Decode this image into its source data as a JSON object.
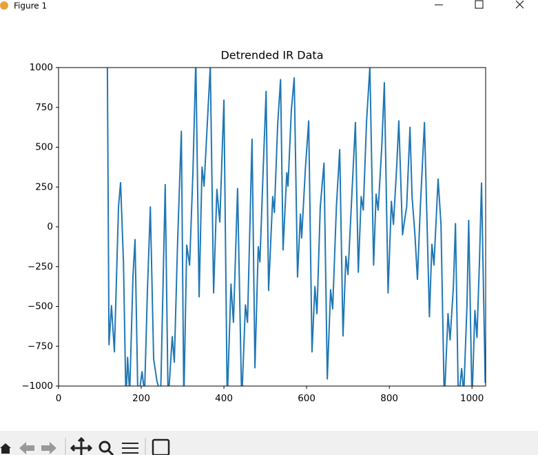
{
  "window": {
    "title": "Figure 1"
  },
  "chart_data": {
    "type": "line",
    "title": "Detrended IR Data",
    "x": [
      117,
      122,
      128,
      135,
      145,
      150,
      157,
      163,
      167,
      172,
      180,
      185,
      192,
      202,
      208,
      215,
      222,
      230,
      238,
      247,
      258,
      265,
      275,
      280,
      288,
      297,
      303,
      310,
      317,
      325,
      332,
      340,
      347,
      352,
      358,
      367,
      375,
      383,
      390,
      400,
      408,
      417,
      423,
      433,
      443,
      452,
      457,
      468,
      475,
      483,
      487,
      495,
      502,
      508,
      518,
      522,
      530,
      537,
      543,
      552,
      555,
      563,
      570,
      578,
      585,
      588,
      597,
      605,
      613,
      620,
      625,
      633,
      642,
      650,
      658,
      663,
      672,
      680,
      688,
      695,
      700,
      708,
      718,
      725,
      732,
      737,
      745,
      753,
      762,
      768,
      773,
      782,
      788,
      797,
      805,
      810,
      818,
      823,
      832,
      838,
      842,
      850,
      855,
      862,
      868,
      875,
      885,
      892,
      897,
      903,
      908,
      918,
      925,
      933,
      942,
      947,
      955,
      960,
      967,
      975,
      980,
      988,
      992,
      1000,
      1007,
      1012,
      1018,
      1023,
      1032
    ],
    "series": [
      {
        "color": "#1f77b4",
        "values": [
          1500,
          -740,
          -495,
          -785,
          125,
          277,
          -220,
          -1100,
          -820,
          -1050,
          -310,
          -80,
          -1100,
          -910,
          -1050,
          -395,
          125,
          -830,
          -970,
          -1050,
          265,
          -1100,
          -690,
          -850,
          -90,
          600,
          -1100,
          -115,
          -240,
          340,
          1050,
          -440,
          375,
          255,
          560,
          1010,
          -415,
          235,
          30,
          795,
          -1100,
          -360,
          -600,
          240,
          -1100,
          -490,
          -600,
          550,
          -885,
          -125,
          -220,
          365,
          850,
          -400,
          190,
          90,
          645,
          925,
          -145,
          340,
          255,
          730,
          935,
          -315,
          80,
          -70,
          365,
          665,
          -785,
          -375,
          -545,
          125,
          400,
          -955,
          -395,
          -515,
          125,
          485,
          -685,
          -185,
          -300,
          125,
          655,
          -285,
          190,
          105,
          665,
          1005,
          -240,
          205,
          105,
          515,
          905,
          -415,
          160,
          15,
          385,
          665,
          -50,
          60,
          125,
          625,
          190,
          -50,
          -330,
          125,
          655,
          -50,
          -565,
          -110,
          -240,
          300,
          15,
          -1100,
          -545,
          -710,
          -375,
          20,
          -1100,
          -890,
          -1050,
          -480,
          40,
          -1100,
          -525,
          -695,
          -220,
          275,
          -980
        ]
      }
    ],
    "xlim": [
      0,
      1033
    ],
    "ylim": [
      -1000,
      1000
    ],
    "xticks": [
      0,
      200,
      400,
      600,
      800,
      1000
    ],
    "yticks": [
      {
        "value": -1000,
        "label": "−1000"
      },
      {
        "value": -750,
        "label": "−750"
      },
      {
        "value": -500,
        "label": "−500"
      },
      {
        "value": -250,
        "label": "−250"
      },
      0,
      250,
      500,
      750,
      1000
    ],
    "grid": false
  }
}
